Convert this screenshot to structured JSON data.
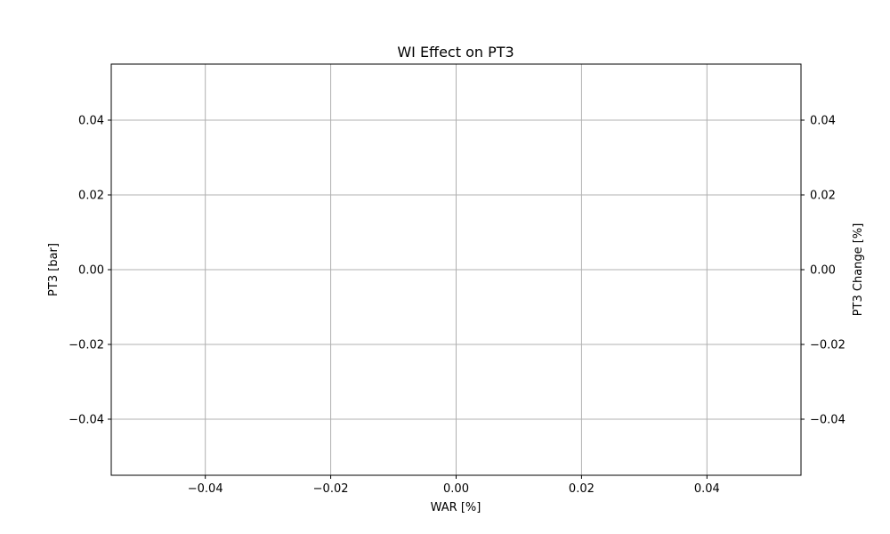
{
  "chart_data": {
    "type": "line",
    "title": "WI Effect on PT3",
    "xlabel": "WAR [%]",
    "ylabel": "PT3 [bar]",
    "y2label": "PT3 Change [%]",
    "xlim": [
      -0.055,
      0.055
    ],
    "ylim": [
      -0.055,
      0.055
    ],
    "y2lim": [
      -0.055,
      0.055
    ],
    "x_ticks": [
      -0.04,
      -0.02,
      0.0,
      0.02,
      0.04
    ],
    "x_tick_labels": [
      "−0.04",
      "−0.02",
      "0.00",
      "0.02",
      "0.04"
    ],
    "y_ticks": [
      -0.04,
      -0.02,
      0.0,
      0.02,
      0.04
    ],
    "y_tick_labels": [
      "−0.04",
      "−0.02",
      "0.00",
      "0.02",
      "0.04"
    ],
    "y2_ticks": [
      -0.04,
      -0.02,
      0.0,
      0.02,
      0.04
    ],
    "y2_tick_labels": [
      "−0.04",
      "−0.02",
      "0.00",
      "0.02",
      "0.04"
    ],
    "grid": true,
    "series": []
  },
  "colors": {
    "grid": "#b0b0b0",
    "axis": "#000000",
    "background": "#ffffff"
  }
}
